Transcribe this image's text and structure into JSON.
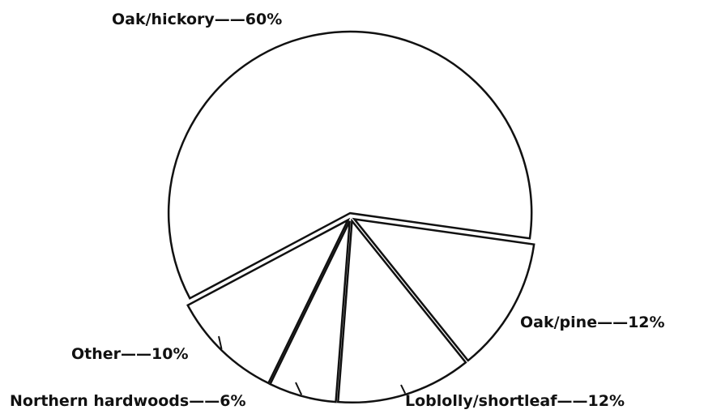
{
  "chart_data": {
    "type": "pie",
    "categories": [
      "Oak/hickory",
      "Oak/pine",
      "Loblolly/shortleaf",
      "Northern hardwoods",
      "Other"
    ],
    "values": [
      60,
      12,
      12,
      6,
      10
    ],
    "value_labels": [
      "——60%",
      "——12%",
      "——12%",
      "——6%",
      "——10%"
    ],
    "color": "#ffffff"
  }
}
